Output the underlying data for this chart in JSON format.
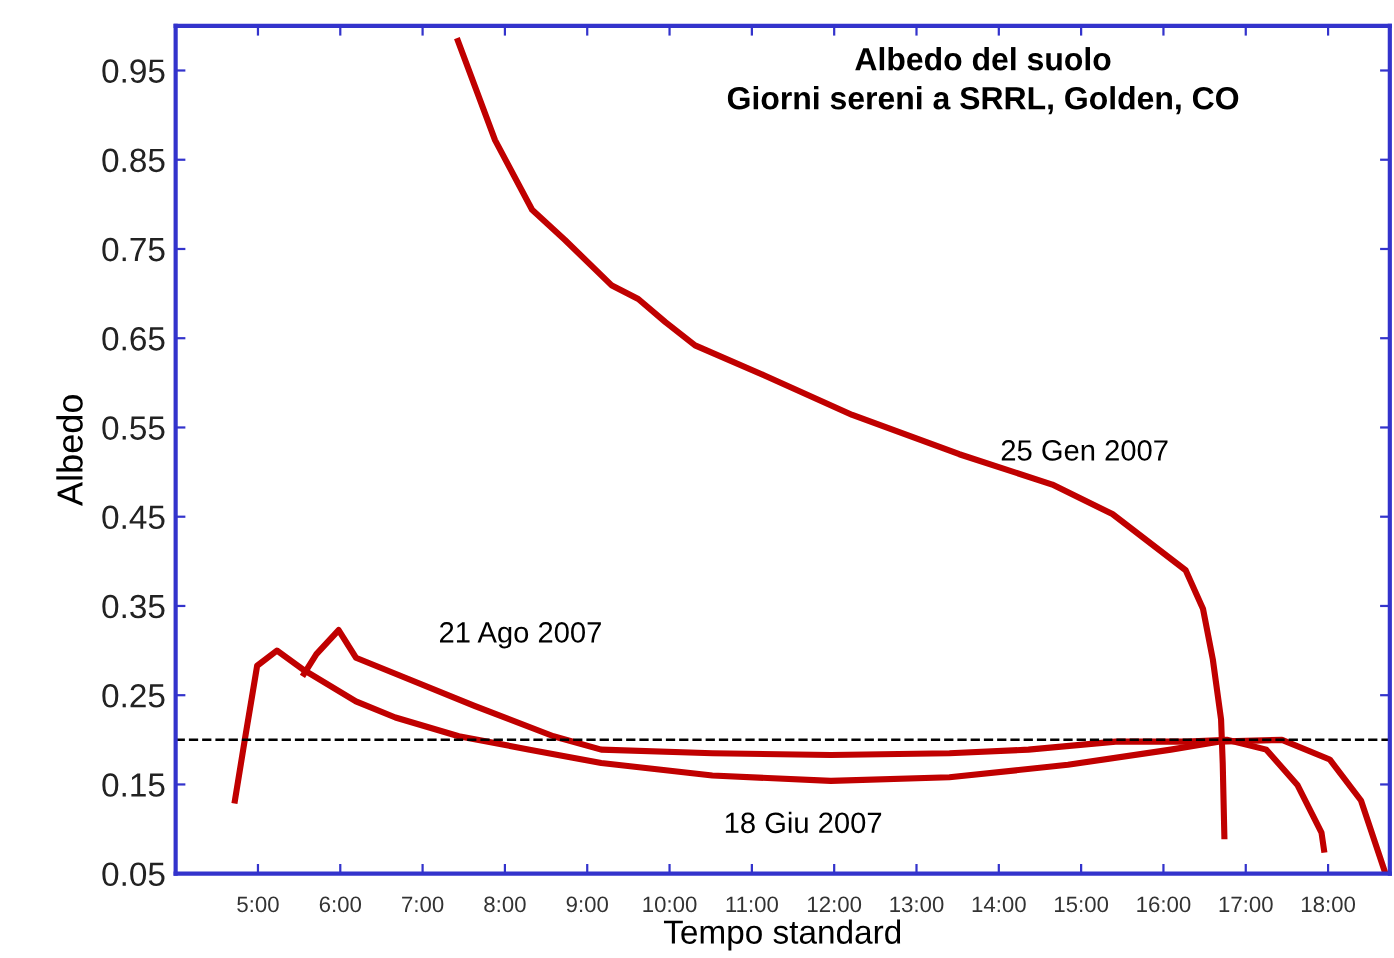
{
  "chart_data": {
    "type": "line",
    "title": "Albedo del suolo\nGiorni sereni a SRRL, Golden, CO",
    "xlabel": "Tempo standard",
    "ylabel": "Albedo",
    "xlim": [
      4,
      18.75
    ],
    "ylim": [
      0.05,
      1.0
    ],
    "xticks": [
      {
        "value": 5,
        "label": "5:00"
      },
      {
        "value": 6,
        "label": "6:00"
      },
      {
        "value": 7,
        "label": "7:00"
      },
      {
        "value": 8,
        "label": "8:00"
      },
      {
        "value": 9,
        "label": "9:00"
      },
      {
        "value": 10,
        "label": "10:00"
      },
      {
        "value": 11,
        "label": "11:00"
      },
      {
        "value": 12,
        "label": "12:00"
      },
      {
        "value": 13,
        "label": "13:00"
      },
      {
        "value": 14,
        "label": "14:00"
      },
      {
        "value": 15,
        "label": "15:00"
      },
      {
        "value": 16,
        "label": "16:00"
      },
      {
        "value": 17,
        "label": "17:00"
      },
      {
        "value": 18,
        "label": "18:00"
      }
    ],
    "yticks": [
      0.05,
      0.15,
      0.25,
      0.35,
      0.45,
      0.55,
      0.65,
      0.75,
      0.85,
      0.95
    ],
    "grid": false,
    "legend": false,
    "marker": "none",
    "line_style": "solid",
    "series": [
      {
        "name": "25 Gen 2007",
        "color": "#c00000",
        "x": [
          7.43,
          7.88,
          8.33,
          8.73,
          9.3,
          9.62,
          9.95,
          10.31,
          11.16,
          12.22,
          13.52,
          14.65,
          15.38,
          16.27,
          16.48,
          16.6,
          16.7,
          16.72,
          16.74
        ],
        "values": [
          0.983,
          0.872,
          0.794,
          0.76,
          0.709,
          0.694,
          0.668,
          0.642,
          0.608,
          0.564,
          0.52,
          0.486,
          0.453,
          0.39,
          0.347,
          0.29,
          0.223,
          0.174,
          0.092
        ]
      },
      {
        "name": "21 Ago 2007",
        "color": "#c00000",
        "x": [
          5.56,
          5.71,
          5.98,
          6.19,
          6.67,
          7.63,
          8.59,
          9.17,
          10.52,
          11.96,
          13.4,
          14.36,
          15.42,
          16.29,
          16.77,
          17.25,
          17.63,
          17.92,
          17.95
        ],
        "values": [
          0.274,
          0.296,
          0.323,
          0.292,
          0.274,
          0.238,
          0.204,
          0.189,
          0.185,
          0.183,
          0.185,
          0.189,
          0.198,
          0.198,
          0.2,
          0.189,
          0.149,
          0.096,
          0.077
        ]
      },
      {
        "name": "18 Giu 2007",
        "color": "#c00000",
        "x": [
          4.72,
          4.84,
          4.99,
          5.23,
          5.56,
          6.19,
          6.67,
          7.44,
          8.3,
          9.17,
          10.52,
          11.96,
          13.4,
          14.84,
          16.09,
          16.67,
          17.44,
          18.02,
          18.4,
          18.69
        ],
        "values": [
          0.132,
          0.2,
          0.283,
          0.3,
          0.278,
          0.243,
          0.225,
          0.204,
          0.189,
          0.174,
          0.16,
          0.154,
          0.158,
          0.172,
          0.189,
          0.198,
          0.2,
          0.178,
          0.132,
          0.052
        ]
      }
    ],
    "ref_lines": [
      {
        "axis": "y",
        "value": 0.2,
        "color": "#000000",
        "line_style": "dashed"
      }
    ]
  }
}
